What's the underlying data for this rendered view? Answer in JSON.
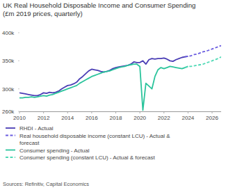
{
  "chart_data": {
    "type": "line",
    "title": "UK Real Household Disposable Income and Consumer Spending",
    "subtitle": "(£m 2019 prices, quarterly)",
    "source": "Sources: Refinitiv, Capital Economics",
    "x": [
      2010,
      2010.25,
      2010.5,
      2010.75,
      2011,
      2011.25,
      2011.5,
      2011.75,
      2012,
      2012.25,
      2012.5,
      2012.75,
      2013,
      2013.25,
      2013.5,
      2013.75,
      2014,
      2014.25,
      2014.5,
      2014.75,
      2015,
      2015.25,
      2015.5,
      2015.75,
      2016,
      2016.25,
      2016.5,
      2016.75,
      2017,
      2017.25,
      2017.5,
      2017.75,
      2018,
      2018.25,
      2018.5,
      2018.75,
      2019,
      2019.25,
      2019.5,
      2019.75,
      2020,
      2020.25,
      2020.5,
      2020.75,
      2021,
      2021.25,
      2021.5,
      2021.75,
      2022,
      2022.25,
      2022.5,
      2022.75,
      2023,
      2023.25,
      2023.5,
      2023.75,
      2024,
      2024.25,
      2024.5,
      2024.75,
      2025,
      2025.25,
      2025.5,
      2025.75,
      2026,
      2026.25,
      2026.5,
      2026.75
    ],
    "series": [
      {
        "name": "RHDI - Actual",
        "color": "#4a3db5",
        "line_style": "solid",
        "values": [
          293000,
          292000,
          291000,
          290000,
          289000,
          288000,
          288000,
          290000,
          293000,
          292000,
          294000,
          293000,
          294000,
          296000,
          300000,
          303000,
          306000,
          307000,
          309000,
          312000,
          318000,
          322000,
          327000,
          332000,
          335000,
          334000,
          333000,
          331000,
          330000,
          331000,
          333000,
          336000,
          338000,
          339000,
          340000,
          341000,
          342000,
          344000,
          348000,
          347000,
          347000,
          350000,
          344000,
          352000,
          354000,
          353000,
          354000,
          354000,
          355000,
          353000,
          350000,
          349000,
          352000,
          354000,
          356000,
          357000,
          358000,
          null,
          null,
          null,
          null,
          null,
          null,
          null,
          null,
          null,
          null,
          null
        ]
      },
      {
        "name": "Real household disposable income (constant LCU) - Actual & forecast",
        "color": "#6a5ce0",
        "line_style": "dashed",
        "values": [
          null,
          null,
          null,
          null,
          null,
          null,
          null,
          null,
          null,
          null,
          null,
          null,
          null,
          null,
          null,
          null,
          null,
          null,
          null,
          null,
          null,
          null,
          null,
          null,
          null,
          null,
          null,
          null,
          null,
          null,
          null,
          null,
          null,
          null,
          null,
          null,
          null,
          null,
          null,
          null,
          null,
          null,
          null,
          null,
          null,
          null,
          null,
          null,
          null,
          null,
          null,
          null,
          null,
          null,
          null,
          357000,
          358000,
          359000,
          361000,
          362000,
          364000,
          366000,
          367000,
          369000,
          371000,
          373000,
          375000,
          377000
        ]
      },
      {
        "name": "Consumer spending - Actual",
        "color": "#2bc49c",
        "line_style": "solid",
        "values": [
          284000,
          284000,
          285000,
          285000,
          286000,
          285000,
          286000,
          287000,
          288000,
          287000,
          289000,
          290000,
          292000,
          294000,
          296000,
          298000,
          300000,
          302000,
          304000,
          306000,
          310000,
          313000,
          316000,
          319000,
          322000,
          324000,
          326000,
          328000,
          330000,
          331000,
          332000,
          334000,
          336000,
          338000,
          339000,
          340000,
          342000,
          343000,
          344000,
          344000,
          340000,
          262000,
          310000,
          305000,
          300000,
          322000,
          334000,
          338000,
          336000,
          338000,
          340000,
          339000,
          338000,
          337000,
          336000,
          338000,
          340000,
          null,
          null,
          null,
          null,
          null,
          null,
          null,
          null,
          null,
          null,
          null
        ]
      },
      {
        "name": "Consumer spending (constant LCU) - Actual & forecast",
        "color": "#4fd9b5",
        "line_style": "dashed",
        "values": [
          null,
          null,
          null,
          null,
          null,
          null,
          null,
          null,
          null,
          null,
          null,
          null,
          null,
          null,
          null,
          null,
          null,
          null,
          null,
          null,
          null,
          null,
          null,
          null,
          null,
          null,
          null,
          null,
          null,
          null,
          null,
          null,
          null,
          null,
          null,
          null,
          null,
          null,
          null,
          null,
          null,
          null,
          null,
          null,
          null,
          null,
          null,
          null,
          null,
          null,
          null,
          null,
          null,
          null,
          null,
          338000,
          340000,
          340000,
          341000,
          342000,
          343000,
          344000,
          346000,
          348000,
          350000,
          352000,
          354000,
          357000
        ]
      }
    ],
    "xlim": [
      2010,
      2026.75
    ],
    "xticks": [
      2010,
      2012,
      2014,
      2016,
      2018,
      2020,
      2022,
      2024,
      2026
    ],
    "ylim": [
      260000,
      400000
    ],
    "yticks": [
      {
        "value": 260000,
        "label": "260k"
      },
      {
        "value": 300000,
        "label": "300k"
      },
      {
        "value": 350000,
        "label": "350k"
      },
      {
        "value": 400000,
        "label": "400k"
      }
    ],
    "grid": false,
    "legend": "bottom"
  }
}
